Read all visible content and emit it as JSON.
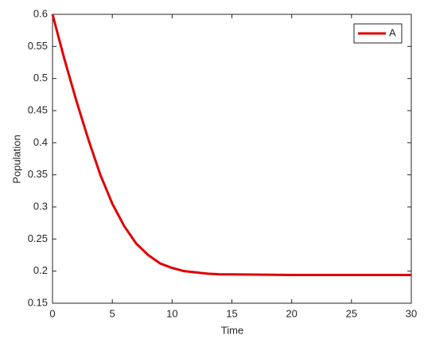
{
  "chart_data": {
    "type": "line",
    "xlabel": "Time",
    "ylabel": "Population",
    "x": [
      0,
      1,
      2,
      3,
      4,
      5,
      6,
      7,
      8,
      9,
      10,
      11,
      12,
      13,
      14,
      15,
      20,
      25,
      30
    ],
    "series": [
      {
        "name": "A",
        "color": "#e00000",
        "values": [
          0.6,
          0.53,
          0.465,
          0.405,
          0.35,
          0.305,
          0.27,
          0.243,
          0.225,
          0.212,
          0.205,
          0.2,
          0.198,
          0.196,
          0.195,
          0.195,
          0.194,
          0.194,
          0.194
        ]
      }
    ],
    "xlim": [
      0,
      30
    ],
    "ylim": [
      0.15,
      0.6
    ],
    "xticks": [
      0,
      5,
      10,
      15,
      20,
      25,
      30
    ],
    "yticks": [
      0.15,
      0.2,
      0.25,
      0.3,
      0.35,
      0.4,
      0.45,
      0.5,
      0.55,
      0.6
    ],
    "legend": "top-right",
    "grid": false
  }
}
